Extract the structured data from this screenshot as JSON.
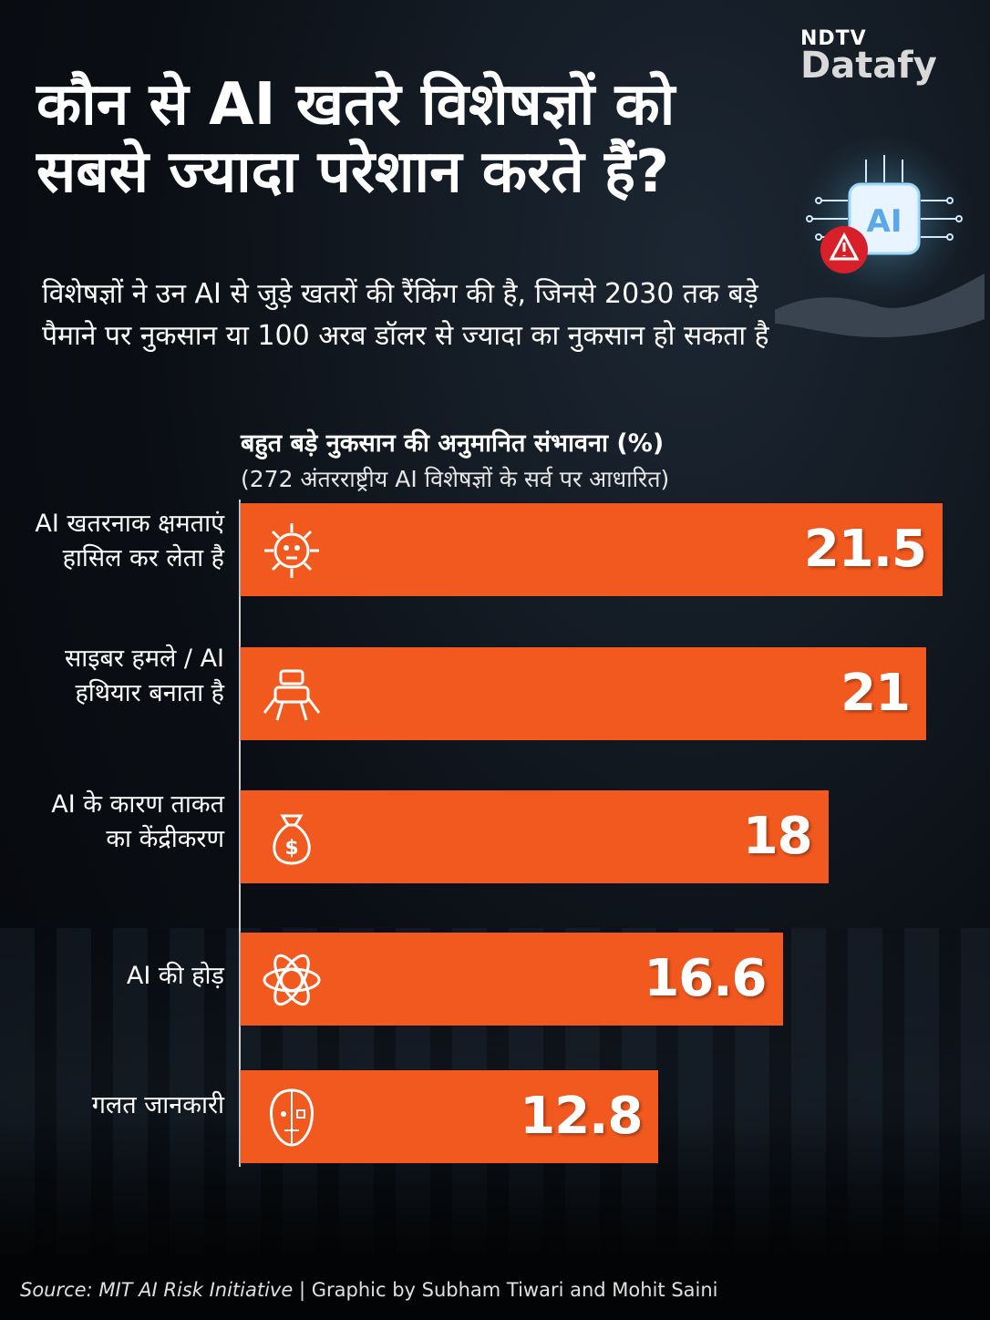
{
  "brand": {
    "ndtv": "NDTV",
    "datafy": "Datafy"
  },
  "title": "कौन से AI खतरे विशेषज्ञों को सबसे ज्यादा परेशान करते हैं?",
  "subtitle": "विशेषज्ञों ने उन AI से जुड़े खतरों की रैंकिंग की है, जिनसे 2030 तक बड़े पैमाने पर नुकसान या 100 अरब डॉलर से ज्यादा का नुकसान हो सकता है",
  "hero_badge": "AI",
  "chart_data": {
    "type": "bar",
    "orientation": "horizontal",
    "title": "बहुत बड़े नुकसान की अनुमानित संभावना (%)",
    "subtitle": "(272 अंतरराष्ट्रीय AI विशेषज्ञों के सर्व पर आधारित)",
    "categories": [
      "AI खतरनाक क्षमताएं हासिल कर लेता है",
      "साइबर हमले / AI हथियार बनाता है",
      "AI के कारण ताकत का केंद्रीकरण",
      "AI की होड़",
      "गलत जानकारी"
    ],
    "values": [
      21.5,
      21,
      18,
      16.6,
      12.8
    ],
    "value_labels": [
      "21.5",
      "21",
      "18",
      "16.6",
      "12.8"
    ],
    "icons": [
      "skull-virus-icon",
      "robot-crawler-icon",
      "money-bag-icon",
      "ai-atom-icon",
      "half-human-half-robot-face-icon"
    ],
    "xlim": [
      0,
      21.5
    ],
    "bar_color": "#f2591f",
    "grid": false
  },
  "footer": {
    "source": "Source: MIT AI Risk Initiative",
    "separator": "|",
    "credit": "Graphic by Subham Tiwari and Mohit Saini"
  }
}
